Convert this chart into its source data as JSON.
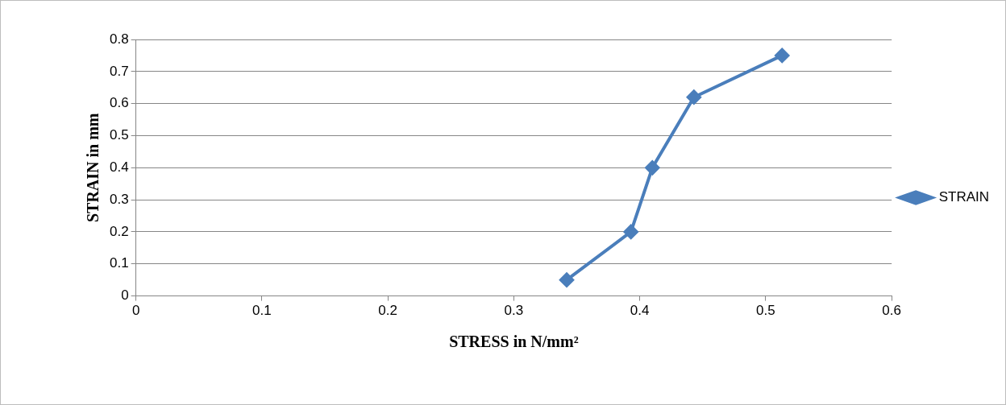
{
  "chart_data": {
    "type": "line",
    "xlabel": "STRESS in N/mm²",
    "ylabel": "STRAIN in mm",
    "x": [
      0.342,
      0.393,
      0.41,
      0.443,
      0.513
    ],
    "series": [
      {
        "name": "STRAIN",
        "color": "#4a7ebb",
        "values": [
          0.05,
          0.2,
          0.4,
          0.62,
          0.75
        ]
      }
    ],
    "xlim": [
      0,
      0.6
    ],
    "xticks": [
      0,
      0.1,
      0.2,
      0.3,
      0.4,
      0.5,
      0.6
    ],
    "ylim": [
      0,
      0.8
    ],
    "yticks": [
      0,
      0.1,
      0.2,
      0.3,
      0.4,
      0.5,
      0.6,
      0.7,
      0.8
    ],
    "grid": "y",
    "legend": "right",
    "marker": "diamond",
    "line_style": "solid"
  }
}
